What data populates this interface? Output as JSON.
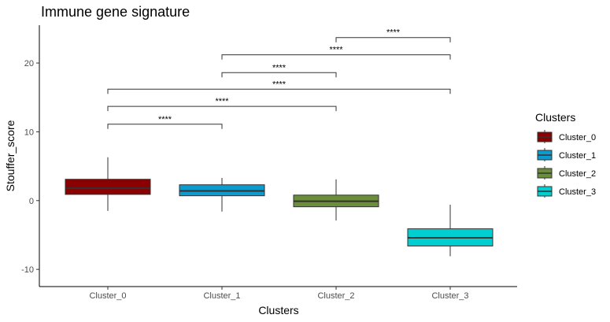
{
  "chart_data": {
    "type": "box",
    "title": "Immune gene signature",
    "xlabel": "Clusters",
    "ylabel": "Stouffer_score",
    "categories": [
      "Cluster_0",
      "Cluster_1",
      "Cluster_2",
      "Cluster_3"
    ],
    "ylim": [
      -12.5,
      25.5
    ],
    "yticks": [
      -10,
      0,
      10,
      20
    ],
    "grid": false,
    "boxes": [
      {
        "name": "Cluster_0",
        "min": -1.5,
        "q1": 0.9,
        "median": 1.8,
        "q3": 3.1,
        "max": 6.3,
        "color": "#8B0000"
      },
      {
        "name": "Cluster_1",
        "min": -1.6,
        "q1": 0.7,
        "median": 1.4,
        "q3": 2.3,
        "max": 3.3,
        "color": "#0B9BCF"
      },
      {
        "name": "Cluster_2",
        "min": -2.9,
        "q1": -0.9,
        "median": -0.1,
        "q3": 0.8,
        "max": 3.1,
        "color": "#6B8E3A"
      },
      {
        "name": "Cluster_3",
        "min": -8.1,
        "q1": -6.6,
        "median": -5.4,
        "q3": -4.1,
        "max": -0.6,
        "color": "#00CED1"
      }
    ],
    "significance": [
      {
        "from": "Cluster_0",
        "to": "Cluster_1",
        "y": 11.1,
        "label": "****"
      },
      {
        "from": "Cluster_0",
        "to": "Cluster_2",
        "y": 13.7,
        "label": "****"
      },
      {
        "from": "Cluster_0",
        "to": "Cluster_3",
        "y": 16.2,
        "label": "****"
      },
      {
        "from": "Cluster_1",
        "to": "Cluster_2",
        "y": 18.6,
        "label": "****"
      },
      {
        "from": "Cluster_1",
        "to": "Cluster_3",
        "y": 21.2,
        "label": "****"
      },
      {
        "from": "Cluster_2",
        "to": "Cluster_3",
        "y": 23.7,
        "label": "****"
      }
    ],
    "legend": {
      "title": "Clusters",
      "placement": "right",
      "entries": [
        "Cluster_0",
        "Cluster_1",
        "Cluster_2",
        "Cluster_3"
      ]
    }
  }
}
